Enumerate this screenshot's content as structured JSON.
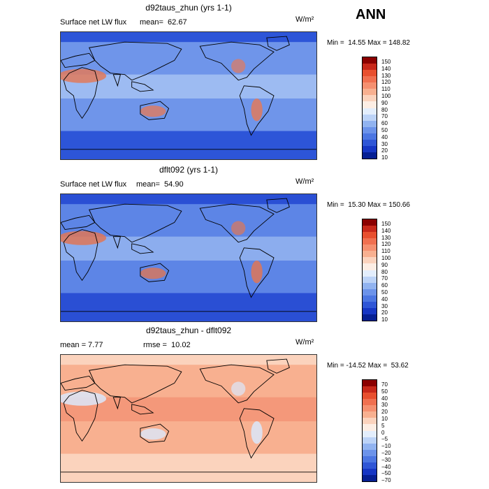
{
  "season": "ANN",
  "panels": [
    {
      "id": "top",
      "title": "d92taus_zhun (yrs 1-1)",
      "label_left": "Surface net LW flux",
      "stat": "mean=  62.67",
      "units": "W/m²",
      "minmax": "Min =  14.55 Max = 148.82",
      "colorbar_labels": [
        "150",
        "140",
        "130",
        "120",
        "110",
        "100",
        "90",
        "80",
        "70",
        "60",
        "50",
        "40",
        "30",
        "20",
        "10"
      ],
      "colorbar_colors": [
        "#8b0000",
        "#c8281a",
        "#e8502f",
        "#f07050",
        "#f59070",
        "#f8b090",
        "#fbd3bd",
        "#fdeee4",
        "#e3eefc",
        "#bcd3f7",
        "#91b3f0",
        "#6c93ea",
        "#4c76e2",
        "#2f56d6",
        "#1636c4",
        "#061f93"
      ],
      "map_colors": [
        "#2d55d8",
        "#6f95ea",
        "#a9c4f4",
        "#e27a5c"
      ]
    },
    {
      "id": "middle",
      "title": "dflt092 (yrs 1-1)",
      "label_left": "Surface net LW flux",
      "stat": "mean=  54.90",
      "units": "W/m²",
      "minmax": "Min =  15.30 Max = 150.66",
      "colorbar_labels": [
        "150",
        "140",
        "130",
        "120",
        "110",
        "100",
        "90",
        "80",
        "70",
        "60",
        "50",
        "40",
        "30",
        "20",
        "10"
      ],
      "colorbar_colors": [
        "#8b0000",
        "#c8281a",
        "#e8502f",
        "#f07050",
        "#f59070",
        "#f8b090",
        "#fbd3bd",
        "#fdeee4",
        "#e3eefc",
        "#bcd3f7",
        "#91b3f0",
        "#6c93ea",
        "#4c76e2",
        "#2f56d6",
        "#1636c4",
        "#061f93"
      ],
      "map_colors": [
        "#2a4fd4",
        "#5d85e6",
        "#98b6f0",
        "#df7656"
      ]
    },
    {
      "id": "bottom",
      "title": "d92taus_zhun - dflt092",
      "label_left": "mean =   7.77",
      "stat": "rmse =  10.02",
      "units": "W/m²",
      "minmax": "Min = -14.52 Max =  53.62",
      "colorbar_labels": [
        "70",
        "50",
        "40",
        "30",
        "20",
        "10",
        "5",
        "0",
        "−5",
        "−10",
        "−20",
        "−30",
        "−40",
        "−50",
        "−70"
      ],
      "colorbar_colors": [
        "#8b0000",
        "#c8281a",
        "#e8502f",
        "#f07050",
        "#f59070",
        "#f8b090",
        "#fbd3bd",
        "#fdeee4",
        "#e3eefc",
        "#bcd3f7",
        "#91b3f0",
        "#6c93ea",
        "#4c76e2",
        "#2f56d6",
        "#1636c4",
        "#061f93"
      ],
      "map_colors": [
        "#fbd3bd",
        "#f8b090",
        "#f39274",
        "#dbe8fb"
      ]
    }
  ]
}
